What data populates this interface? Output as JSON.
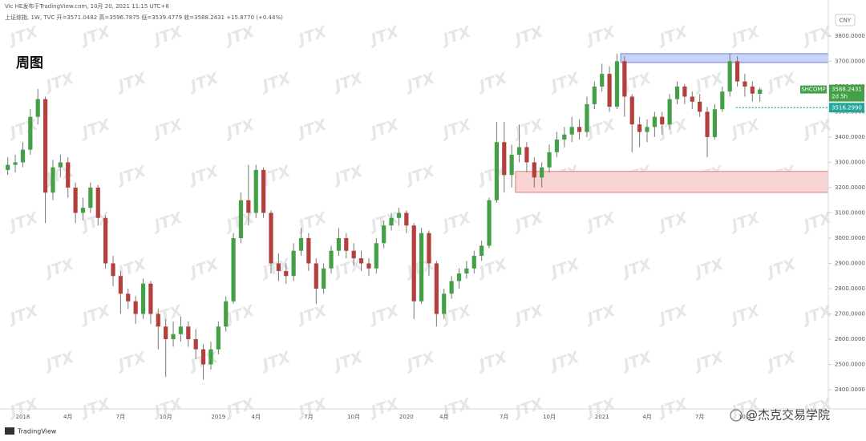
{
  "chart_data": {
    "type": "candlestick",
    "header": "Vic HE发布于TradingView.com, 10月 20, 2021 11:15 UTC+8",
    "subheader": "上证综指, 1W, TVC 开=3571.0482 高=3596.7875 低=3539.4779 收=3588.2431 +15.8770 (+0.44%)",
    "label": "周图",
    "currency": "CNY",
    "watermark": "JTX",
    "brand": "TradingView",
    "credit": "@杰克交易学院",
    "symbol": "SHCOMP",
    "last_price": {
      "value": 3588.2431,
      "label": "3588.2431"
    },
    "countdown": "2d 5h",
    "level": {
      "value": 3516.299,
      "label": "3516.2990"
    },
    "up_color": "#43a047",
    "down_color": "#b3403c",
    "ylim": [
      2324,
      3917
    ],
    "yticks": [
      {
        "value": 2400,
        "label": "2400.0000"
      },
      {
        "value": 2500,
        "label": "2500.0000"
      },
      {
        "value": 2600,
        "label": "2600.0000"
      },
      {
        "value": 2700,
        "label": "2700.0000"
      },
      {
        "value": 2800,
        "label": "2800.0000"
      },
      {
        "value": 2900,
        "label": "2900.0000"
      },
      {
        "value": 3000,
        "label": "3000.0000"
      },
      {
        "value": 3100,
        "label": "3100.0000"
      },
      {
        "value": 3200,
        "label": "3200.0000"
      },
      {
        "value": 3300,
        "label": "3300.0000"
      },
      {
        "value": 3400,
        "label": "3400.0000"
      },
      {
        "value": 3500,
        "label": "3500.0000"
      },
      {
        "value": 3600,
        "label": "3600.0000"
      },
      {
        "value": 3700,
        "label": "3700.0000"
      },
      {
        "value": 3800,
        "label": "3800.0000"
      }
    ],
    "zones": [
      {
        "low": 3695,
        "high": 3730,
        "start": 82,
        "color": "#c9d2f7",
        "border": "#6d7fd8"
      },
      {
        "low": 3181,
        "high": 3264,
        "start": 68,
        "color": "#f8d4d4",
        "border": "#e07f7f"
      }
    ],
    "categories": [
      null,
      null,
      "2018",
      null,
      null,
      null,
      null,
      null,
      "4月",
      null,
      null,
      null,
      null,
      null,
      null,
      "7月",
      null,
      null,
      null,
      null,
      null,
      "10月",
      null,
      null,
      null,
      null,
      null,
      null,
      "2019",
      null,
      null,
      null,
      null,
      "4月",
      null,
      null,
      null,
      null,
      null,
      null,
      "7月",
      null,
      null,
      null,
      null,
      null,
      "10月",
      null,
      null,
      null,
      null,
      null,
      null,
      "2020",
      null,
      null,
      null,
      null,
      "4月",
      null,
      null,
      null,
      null,
      null,
      null,
      null,
      "7月",
      null,
      null,
      null,
      null,
      null,
      "10月",
      null,
      null,
      null,
      null,
      null,
      null,
      "2021",
      null,
      null,
      null,
      null,
      null,
      "4月",
      null,
      null,
      null,
      null,
      null,
      null,
      "7月",
      null,
      null,
      null,
      null,
      null,
      "10月",
      null,
      null
    ],
    "open": [
      3270,
      3290,
      3300,
      3350,
      3480,
      3550,
      3180,
      3280,
      3300,
      3200,
      3100,
      3120,
      3200,
      3080,
      2900,
      2850,
      2780,
      2750,
      2700,
      2820,
      2700,
      2650,
      2600,
      2620,
      2650,
      2600,
      2560,
      2500,
      2560,
      2650,
      2750,
      3000,
      3150,
      3100,
      3270,
      3100,
      2900,
      2870,
      2850,
      2950,
      3000,
      2900,
      2800,
      2880,
      2950,
      3000,
      2950,
      2920,
      2900,
      2880,
      2980,
      3050,
      3080,
      3100,
      3050,
      2750,
      3020,
      2900,
      2700,
      2780,
      2830,
      2860,
      2880,
      2930,
      2970,
      3150,
      3380,
      3250,
      3330,
      3360,
      3300,
      3240,
      3280,
      3340,
      3390,
      3410,
      3440,
      3420,
      3530,
      3600,
      3650,
      3520,
      3700,
      3560,
      3450,
      3420,
      3440,
      3480,
      3450,
      3550,
      3600,
      3560,
      3540,
      3500,
      3400,
      3510,
      3580,
      3700,
      3620,
      3600,
      3571.0482
    ],
    "high": [
      3320,
      3330,
      3380,
      3510,
      3590,
      3560,
      3310,
      3330,
      3320,
      3220,
      3160,
      3220,
      3210,
      3090,
      2930,
      2870,
      2800,
      2770,
      2840,
      2830,
      2720,
      2680,
      2670,
      2690,
      2670,
      2640,
      2580,
      2590,
      2670,
      2770,
      3020,
      3180,
      3290,
      3290,
      3280,
      3110,
      2940,
      2900,
      2980,
      3040,
      3020,
      2920,
      2900,
      2970,
      3040,
      3020,
      2980,
      2950,
      2920,
      3000,
      3070,
      3100,
      3120,
      3110,
      3060,
      3040,
      3030,
      2910,
      2800,
      2850,
      2880,
      2910,
      2950,
      2990,
      3160,
      3460,
      3460,
      3370,
      3450,
      3380,
      3320,
      3300,
      3370,
      3420,
      3440,
      3480,
      3470,
      3560,
      3620,
      3690,
      3680,
      3730,
      3720,
      3570,
      3480,
      3470,
      3500,
      3500,
      3570,
      3620,
      3610,
      3580,
      3570,
      3520,
      3530,
      3600,
      3730,
      3720,
      3650,
      3620,
      3596.7875
    ],
    "low": [
      3250,
      3260,
      3280,
      3330,
      3450,
      3060,
      3150,
      3240,
      3160,
      3060,
      3070,
      3100,
      3050,
      2880,
      2810,
      2700,
      2720,
      2660,
      2680,
      2660,
      2560,
      2450,
      2570,
      2590,
      2570,
      2520,
      2440,
      2480,
      2540,
      2630,
      2740,
      2980,
      3050,
      3080,
      3080,
      2860,
      2830,
      2820,
      2830,
      2930,
      2870,
      2740,
      2780,
      2860,
      2930,
      2920,
      2890,
      2870,
      2850,
      2860,
      2960,
      3030,
      3050,
      3020,
      2680,
      2740,
      2850,
      2650,
      2680,
      2760,
      2800,
      2840,
      2860,
      2910,
      2960,
      3140,
      3180,
      3200,
      3300,
      3260,
      3200,
      3200,
      3260,
      3320,
      3360,
      3380,
      3390,
      3400,
      3510,
      3580,
      3500,
      3510,
      3480,
      3340,
      3360,
      3380,
      3400,
      3410,
      3430,
      3530,
      3530,
      3510,
      3480,
      3320,
      3390,
      3500,
      3560,
      3600,
      3560,
      3540,
      3539.4779
    ],
    "close": [
      3290,
      3300,
      3350,
      3480,
      3550,
      3180,
      3280,
      3300,
      3200,
      3100,
      3120,
      3200,
      3080,
      2900,
      2850,
      2780,
      2750,
      2700,
      2820,
      2700,
      2650,
      2600,
      2620,
      2650,
      2600,
      2560,
      2500,
      2560,
      2650,
      2750,
      3000,
      3150,
      3100,
      3270,
      3100,
      2900,
      2870,
      2850,
      2950,
      3000,
      2900,
      2800,
      2880,
      2950,
      3000,
      2950,
      2920,
      2900,
      2880,
      2980,
      3050,
      3080,
      3100,
      3050,
      2750,
      3020,
      2900,
      2700,
      2780,
      2830,
      2860,
      2880,
      2930,
      2970,
      3150,
      3380,
      3250,
      3330,
      3360,
      3300,
      3240,
      3280,
      3340,
      3390,
      3410,
      3440,
      3420,
      3530,
      3600,
      3650,
      3520,
      3700,
      3560,
      3450,
      3420,
      3440,
      3480,
      3450,
      3550,
      3600,
      3560,
      3540,
      3500,
      3400,
      3510,
      3580,
      3700,
      3620,
      3600,
      3572,
      3588.2431
    ]
  }
}
